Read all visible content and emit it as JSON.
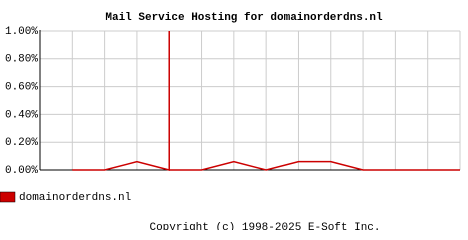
{
  "chart_data": {
    "type": "line",
    "title": "Mail Service Hosting for domainorderdns.nl",
    "x": [
      1,
      2,
      3,
      4,
      4,
      4,
      5,
      6,
      7,
      8,
      9,
      10,
      11,
      12,
      13
    ],
    "series": [
      {
        "name": "domainorderdns.nl",
        "color": "#cc0000",
        "values": [
          0,
          0,
          0.06,
          0,
          1.0,
          0,
          0,
          0.06,
          0,
          0.06,
          0.06,
          0,
          0,
          0,
          0
        ]
      }
    ],
    "xlim": [
      0,
      13
    ],
    "xticks": [
      1,
      2,
      3,
      4,
      5,
      6,
      7,
      8,
      9,
      10,
      11,
      12
    ],
    "ylim": [
      0,
      1.0
    ],
    "yticks": [
      {
        "value": 0,
        "label": "0.00%"
      },
      {
        "value": 0.2,
        "label": "0.20%"
      },
      {
        "value": 0.4,
        "label": "0.40%"
      },
      {
        "value": 0.6,
        "label": "0.60%"
      },
      {
        "value": 0.8,
        "label": "0.80%"
      },
      {
        "value": 1.0,
        "label": "1.00%"
      }
    ],
    "grid": true,
    "legend": "bottom-left",
    "footer": "Copyright (c) 1998-2025 E-Soft Inc."
  }
}
